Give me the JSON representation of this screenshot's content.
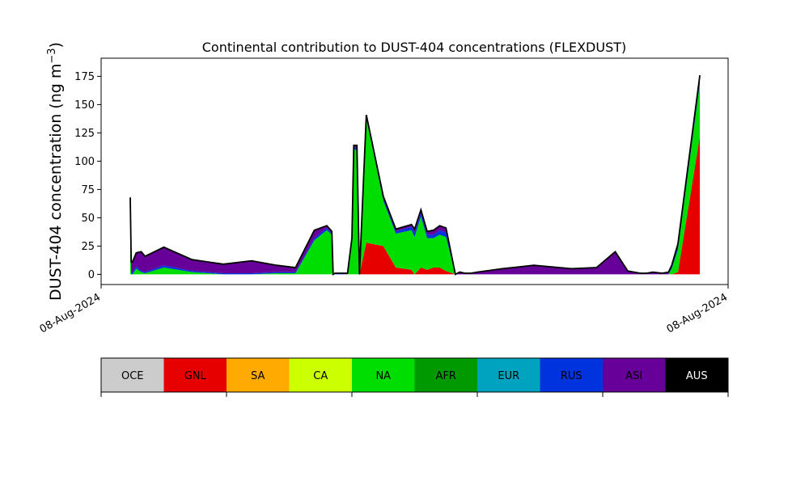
{
  "chart_data": {
    "type": "area",
    "stacked": true,
    "title": "Continental contribution to DUST-404 concentrations (FLEXDUST)",
    "ylabel": "DUST-404 concentration (ng m",
    "ylabel_unit_exponent": "−3",
    "ylabel_close": ")",
    "ylim": [
      -9,
      191
    ],
    "yticks": [
      0,
      25,
      50,
      75,
      100,
      125,
      150,
      175
    ],
    "xlim": [
      0,
      100
    ],
    "xtick_labels": [
      "08-Aug-2024",
      "08-Aug-2024"
    ],
    "grid": false,
    "x": [
      4.65,
      4.8,
      5.0,
      5.6,
      6.4,
      7.0,
      10.0,
      14.5,
      19.5,
      24.0,
      28.0,
      31.0,
      34.0,
      36.0,
      36.8,
      37.0,
      37.3,
      39.3,
      40.0,
      40.3,
      40.8,
      41.2,
      42.3,
      45.0,
      47.0,
      49.5,
      50.0,
      51.0,
      52.0,
      53.0,
      54.0,
      55.0,
      56.5,
      57.2,
      58.0,
      59.0,
      60.0,
      64.0,
      69.0,
      75.0,
      79.0,
      82.0,
      84.0,
      86.0,
      87.0,
      88.0,
      89.5,
      90.5,
      91.0,
      92.0,
      95.5
    ],
    "series": [
      {
        "name": "GNL",
        "color": "#e60000",
        "values": [
          0,
          0,
          0,
          0,
          0,
          0,
          0,
          0,
          0,
          0,
          0,
          0,
          0,
          0,
          0,
          0,
          0,
          0,
          0,
          0,
          0,
          0,
          28,
          25,
          6,
          4,
          0,
          6,
          4,
          6,
          6,
          3,
          0,
          0,
          0,
          0,
          0,
          0,
          0,
          0,
          0,
          0,
          0,
          0,
          0,
          0,
          0,
          0,
          0,
          2,
          122
        ]
      },
      {
        "name": "NA",
        "color": "#00dd00",
        "values": [
          40,
          0,
          0,
          5,
          2,
          1,
          6,
          2,
          0,
          0,
          1,
          1,
          30,
          39,
          35,
          0,
          0,
          0,
          30,
          110,
          110,
          0,
          110,
          40,
          30,
          35,
          33,
          45,
          28,
          26,
          29,
          30,
          0,
          0,
          0,
          0,
          0,
          0,
          0,
          0,
          0,
          0,
          0,
          0,
          0,
          0,
          0,
          0,
          5,
          20,
          47
        ]
      },
      {
        "name": "RUS",
        "color": "#0033dd",
        "values": [
          6,
          1,
          2,
          2,
          1,
          1,
          2,
          1,
          1,
          1,
          1,
          1,
          2,
          2,
          1,
          0,
          1,
          0,
          1,
          2,
          2,
          0,
          2,
          2,
          2,
          3,
          4,
          3,
          3,
          3,
          4,
          4,
          0,
          0,
          0,
          0,
          0,
          0,
          0,
          0,
          0,
          0,
          0,
          0,
          0,
          0,
          0,
          0,
          2,
          3,
          5
        ]
      },
      {
        "name": "ASI",
        "color": "#660099",
        "values": [
          22,
          10,
          9,
          12,
          17,
          14,
          16,
          10,
          8,
          11,
          6,
          4,
          7,
          2,
          2,
          0,
          0,
          1,
          1,
          2,
          2,
          0,
          1,
          2,
          2,
          2,
          3,
          3,
          3,
          4,
          4,
          4,
          0,
          2,
          1,
          1,
          2,
          5,
          8,
          5,
          6,
          20,
          3,
          1,
          1,
          2,
          1,
          2,
          1,
          2,
          2
        ]
      },
      {
        "name": "AUS",
        "color": "#000000",
        "values": [
          0,
          0,
          0,
          0,
          0,
          0,
          0,
          0,
          0,
          0,
          0,
          0,
          0,
          0,
          0,
          0,
          0,
          0,
          0,
          0,
          0,
          0,
          0,
          0,
          0,
          0,
          0,
          0,
          0,
          0,
          0,
          0,
          0,
          0,
          0,
          0,
          0,
          0,
          0,
          0,
          0,
          0,
          0,
          0,
          0,
          0,
          0,
          0,
          0,
          0,
          0
        ]
      }
    ],
    "colorbar": [
      {
        "label": "OCE",
        "color": "#cccccc",
        "text_color": "#000000"
      },
      {
        "label": "GNL",
        "color": "#e60000",
        "text_color": "#000000"
      },
      {
        "label": "SA",
        "color": "#ffaa00",
        "text_color": "#000000"
      },
      {
        "label": "CA",
        "color": "#ccff00",
        "text_color": "#000000"
      },
      {
        "label": "NA",
        "color": "#00dd00",
        "text_color": "#000000"
      },
      {
        "label": "AFR",
        "color": "#009900",
        "text_color": "#000000"
      },
      {
        "label": "EUR",
        "color": "#00a3bf",
        "text_color": "#000000"
      },
      {
        "label": "RUS",
        "color": "#0033dd",
        "text_color": "#000000"
      },
      {
        "label": "ASI",
        "color": "#660099",
        "text_color": "#000000"
      },
      {
        "label": "AUS",
        "color": "#000000",
        "text_color": "#ffffff"
      }
    ]
  }
}
